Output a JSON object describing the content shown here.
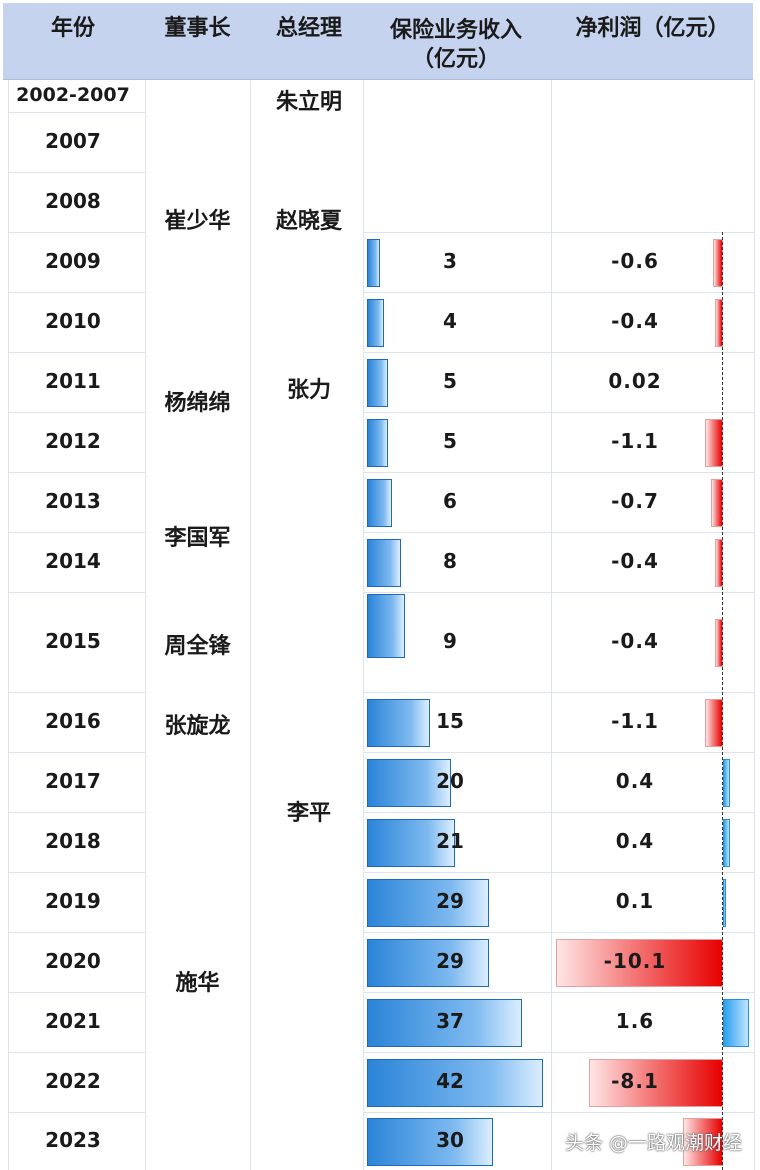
{
  "headers": {
    "year": "年份",
    "chairman": "董事长",
    "gm": "总经理",
    "revenue_line1": "保险业务收入",
    "revenue_line2": "（亿元）",
    "net_profit": "净利润（亿元）"
  },
  "rows": [
    {
      "year": "2002-2007"
    },
    {
      "year": "2007"
    },
    {
      "year": "2008"
    },
    {
      "year": "2009",
      "revenue": 3,
      "net_profit": "-0.6"
    },
    {
      "year": "2010",
      "revenue": 4,
      "net_profit": "-0.4"
    },
    {
      "year": "2011",
      "revenue": 5,
      "net_profit": "0.02"
    },
    {
      "year": "2012",
      "revenue": 5,
      "net_profit": "-1.1"
    },
    {
      "year": "2013",
      "revenue": 6,
      "net_profit": "-0.7"
    },
    {
      "year": "2014",
      "revenue": 8,
      "net_profit": "-0.4"
    },
    {
      "year": "2015",
      "revenue": 9,
      "net_profit": "-0.4"
    },
    {
      "year": "2016",
      "revenue": 15,
      "net_profit": "-1.1"
    },
    {
      "year": "2017",
      "revenue": 20,
      "net_profit": "0.4"
    },
    {
      "year": "2018",
      "revenue": 21,
      "net_profit": "0.4"
    },
    {
      "year": "2019",
      "revenue": 29,
      "net_profit": "0.1"
    },
    {
      "year": "2020",
      "revenue": 29,
      "net_profit": "-10.1"
    },
    {
      "year": "2021",
      "revenue": 37,
      "net_profit": "1.6"
    },
    {
      "year": "2022",
      "revenue": 42,
      "net_profit": "-8.1"
    },
    {
      "year": "2023",
      "revenue": 30,
      "net_profit": ""
    }
  ],
  "chairmen": [
    "崔少华",
    "杨绵绵",
    "李国军",
    "周全锋",
    "张旋龙",
    "施华"
  ],
  "general_managers": [
    "朱立明",
    "赵晓夏",
    "张力",
    "李平"
  ],
  "watermark": "头条 @一路观潮财经",
  "colors": {
    "header_bg": "#c5d3ee",
    "revenue_bar": "#2a84d8",
    "negative_profit": "#e60000",
    "positive_profit": "#2aa0ee"
  },
  "chart_data": {
    "type": "table",
    "columns": [
      "年份",
      "董事长",
      "总经理",
      "保险业务收入（亿元）",
      "净利润（亿元）"
    ],
    "categories": [
      "2009",
      "2010",
      "2011",
      "2012",
      "2013",
      "2014",
      "2015",
      "2016",
      "2017",
      "2018",
      "2019",
      "2020",
      "2021",
      "2022",
      "2023"
    ],
    "series": [
      {
        "name": "保险业务收入（亿元）",
        "values": [
          3,
          4,
          5,
          5,
          6,
          8,
          9,
          15,
          20,
          21,
          29,
          29,
          37,
          42,
          30
        ]
      },
      {
        "name": "净利润（亿元）",
        "values": [
          -0.6,
          -0.4,
          0.02,
          -1.1,
          -0.7,
          -0.4,
          -0.4,
          -1.1,
          0.4,
          0.4,
          0.1,
          -10.1,
          1.6,
          -8.1,
          -2.4
        ]
      }
    ]
  }
}
